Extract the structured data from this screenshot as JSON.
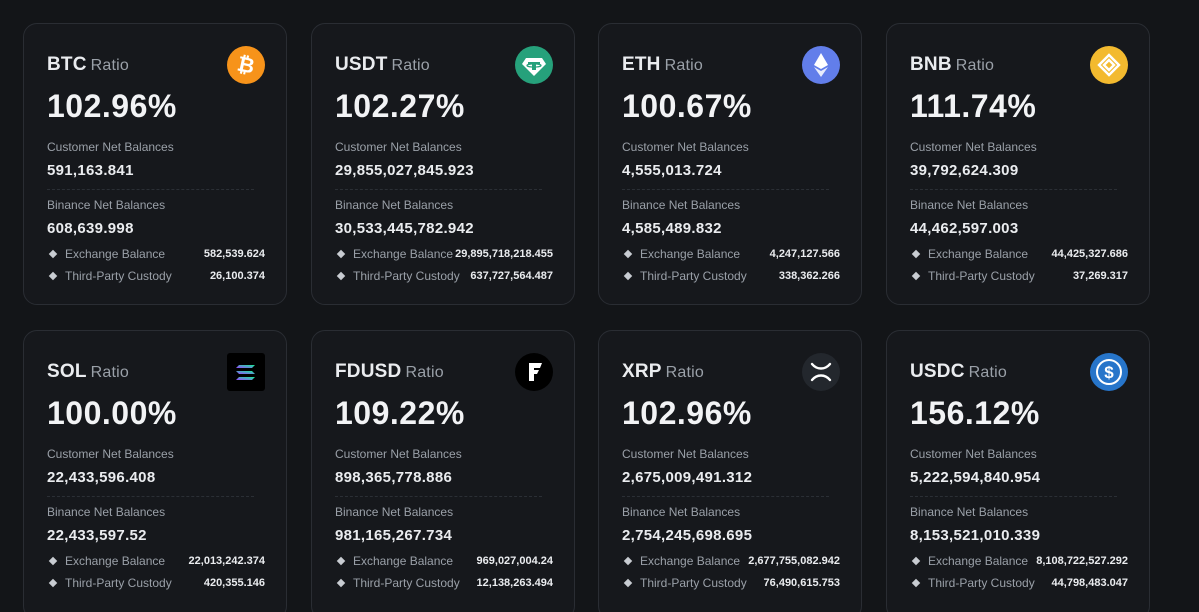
{
  "cards": [
    {
      "symbol": "BTC",
      "suffix": "Ratio",
      "ratio": "102.96%",
      "icon": "btc-icon",
      "customer_label": "Customer Net Balances",
      "customer": "591,163.841",
      "binance_label": "Binance Net Balances",
      "binance": "608,639.998",
      "exchange_label": "Exchange Balance",
      "exchange": "582,539.624",
      "custody_label": "Third-Party Custody",
      "custody": "26,100.374"
    },
    {
      "symbol": "USDT",
      "suffix": "Ratio",
      "ratio": "102.27%",
      "icon": "usdt-icon",
      "customer_label": "Customer Net Balances",
      "customer": "29,855,027,845.923",
      "binance_label": "Binance Net Balances",
      "binance": "30,533,445,782.942",
      "exchange_label": "Exchange Balance",
      "exchange": "29,895,718,218.455",
      "custody_label": "Third-Party Custody",
      "custody": "637,727,564.487"
    },
    {
      "symbol": "ETH",
      "suffix": "Ratio",
      "ratio": "100.67%",
      "icon": "eth-icon",
      "customer_label": "Customer Net Balances",
      "customer": "4,555,013.724",
      "binance_label": "Binance Net Balances",
      "binance": "4,585,489.832",
      "exchange_label": "Exchange Balance",
      "exchange": "4,247,127.566",
      "custody_label": "Third-Party Custody",
      "custody": "338,362.266"
    },
    {
      "symbol": "BNB",
      "suffix": "Ratio",
      "ratio": "111.74%",
      "icon": "bnb-icon",
      "customer_label": "Customer Net Balances",
      "customer": "39,792,624.309",
      "binance_label": "Binance Net Balances",
      "binance": "44,462,597.003",
      "exchange_label": "Exchange Balance",
      "exchange": "44,425,327.686",
      "custody_label": "Third-Party Custody",
      "custody": "37,269.317"
    },
    {
      "symbol": "SOL",
      "suffix": "Ratio",
      "ratio": "100.00%",
      "icon": "sol-icon",
      "customer_label": "Customer Net Balances",
      "customer": "22,433,596.408",
      "binance_label": "Binance Net Balances",
      "binance": "22,433,597.52",
      "exchange_label": "Exchange Balance",
      "exchange": "22,013,242.374",
      "custody_label": "Third-Party Custody",
      "custody": "420,355.146"
    },
    {
      "symbol": "FDUSD",
      "suffix": "Ratio",
      "ratio": "109.22%",
      "icon": "fdusd-icon",
      "customer_label": "Customer Net Balances",
      "customer": "898,365,778.886",
      "binance_label": "Binance Net Balances",
      "binance": "981,165,267.734",
      "exchange_label": "Exchange Balance",
      "exchange": "969,027,004.24",
      "custody_label": "Third-Party Custody",
      "custody": "12,138,263.494"
    },
    {
      "symbol": "XRP",
      "suffix": "Ratio",
      "ratio": "102.96%",
      "icon": "xrp-icon",
      "customer_label": "Customer Net Balances",
      "customer": "2,675,009,491.312",
      "binance_label": "Binance Net Balances",
      "binance": "2,754,245,698.695",
      "exchange_label": "Exchange Balance",
      "exchange": "2,677,755,082.942",
      "custody_label": "Third-Party Custody",
      "custody": "76,490,615.753"
    },
    {
      "symbol": "USDC",
      "suffix": "Ratio",
      "ratio": "156.12%",
      "icon": "usdc-icon",
      "customer_label": "Customer Net Balances",
      "customer": "5,222,594,840.954",
      "binance_label": "Binance Net Balances",
      "binance": "8,153,521,010.339",
      "exchange_label": "Exchange Balance",
      "exchange": "8,108,722,527.292",
      "custody_label": "Third-Party Custody",
      "custody": "44,798,483.047"
    }
  ],
  "colors": {
    "btc": "#f7931a",
    "usdt": "#26a17b",
    "eth": "#627eea",
    "bnb": "#f3ba2f",
    "usdc": "#2775ca"
  }
}
